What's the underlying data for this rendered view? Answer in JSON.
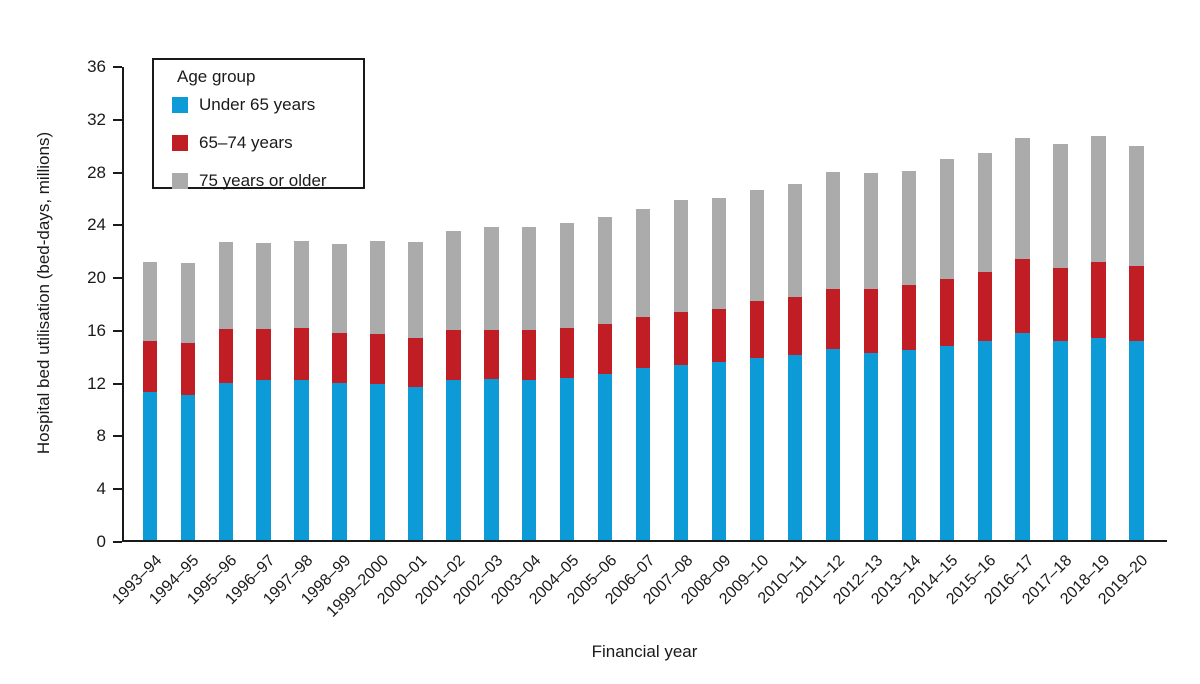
{
  "chart": {
    "y_axis_title": "Hospital bed utilisation (bed-days, millions)",
    "x_axis_title": "Financial year",
    "legend": {
      "title": "Age group"
    },
    "colors": {
      "under_65": "#0c9bd7",
      "age_65_74": "#c01d24",
      "age_75_plus": "#ababab",
      "axis": "#1a1a1a"
    }
  },
  "chart_data": {
    "type": "bar",
    "stacked": true,
    "title": "",
    "xlabel": "Financial year",
    "ylabel": "Hospital bed utilisation (bed-days, millions)",
    "ylim": [
      0,
      36
    ],
    "yticks": [
      0,
      4,
      8,
      12,
      16,
      20,
      24,
      28,
      32,
      36
    ],
    "grid": false,
    "legend_position": "inside-top-left",
    "legend_title": "Age group",
    "categories": [
      "1993–94",
      "1994–95",
      "1995–96",
      "1996–97",
      "1997–98",
      "1998–99",
      "1999–2000",
      "2000–01",
      "2001–02",
      "2002–03",
      "2003–04",
      "2004–05",
      "2005–06",
      "2006–07",
      "2007–08",
      "2008–09",
      "2009–10",
      "2010–11",
      "2011–12",
      "2012–13",
      "2013–14",
      "2014–15",
      "2015–16",
      "2016–17",
      "2017–18",
      "2018–19",
      "2019–20"
    ],
    "series": [
      {
        "name": "Under 65 years",
        "color": "#0c9bd7",
        "values": [
          11.2,
          11.0,
          11.9,
          12.1,
          12.1,
          11.9,
          11.8,
          11.6,
          12.1,
          12.2,
          12.1,
          12.3,
          12.6,
          13.0,
          13.3,
          13.5,
          13.8,
          14.0,
          14.5,
          14.2,
          14.4,
          14.7,
          15.1,
          15.7,
          15.1,
          15.3,
          15.1
        ]
      },
      {
        "name": "65–74 years",
        "color": "#c01d24",
        "values": [
          3.9,
          3.9,
          4.1,
          3.9,
          4.0,
          3.8,
          3.8,
          3.7,
          3.8,
          3.7,
          3.8,
          3.8,
          3.8,
          3.9,
          4.0,
          4.0,
          4.3,
          4.4,
          4.5,
          4.8,
          4.9,
          5.1,
          5.2,
          5.6,
          5.5,
          5.8,
          5.7
        ]
      },
      {
        "name": "75 years or older",
        "color": "#ababab",
        "values": [
          6.0,
          6.1,
          6.6,
          6.5,
          6.6,
          6.7,
          7.1,
          7.3,
          7.5,
          7.8,
          7.8,
          7.9,
          8.1,
          8.2,
          8.5,
          8.4,
          8.4,
          8.6,
          8.9,
          8.8,
          8.7,
          9.1,
          9.0,
          9.2,
          9.4,
          9.5,
          9.1
        ]
      }
    ],
    "totals": [
      21.1,
      21.0,
      22.6,
      22.5,
      22.7,
      22.4,
      22.7,
      22.6,
      23.4,
      23.7,
      23.7,
      24.0,
      24.5,
      25.1,
      25.8,
      25.9,
      26.5,
      27.0,
      27.9,
      27.8,
      28.0,
      28.9,
      29.3,
      30.5,
      30.0,
      30.6,
      29.9
    ]
  }
}
